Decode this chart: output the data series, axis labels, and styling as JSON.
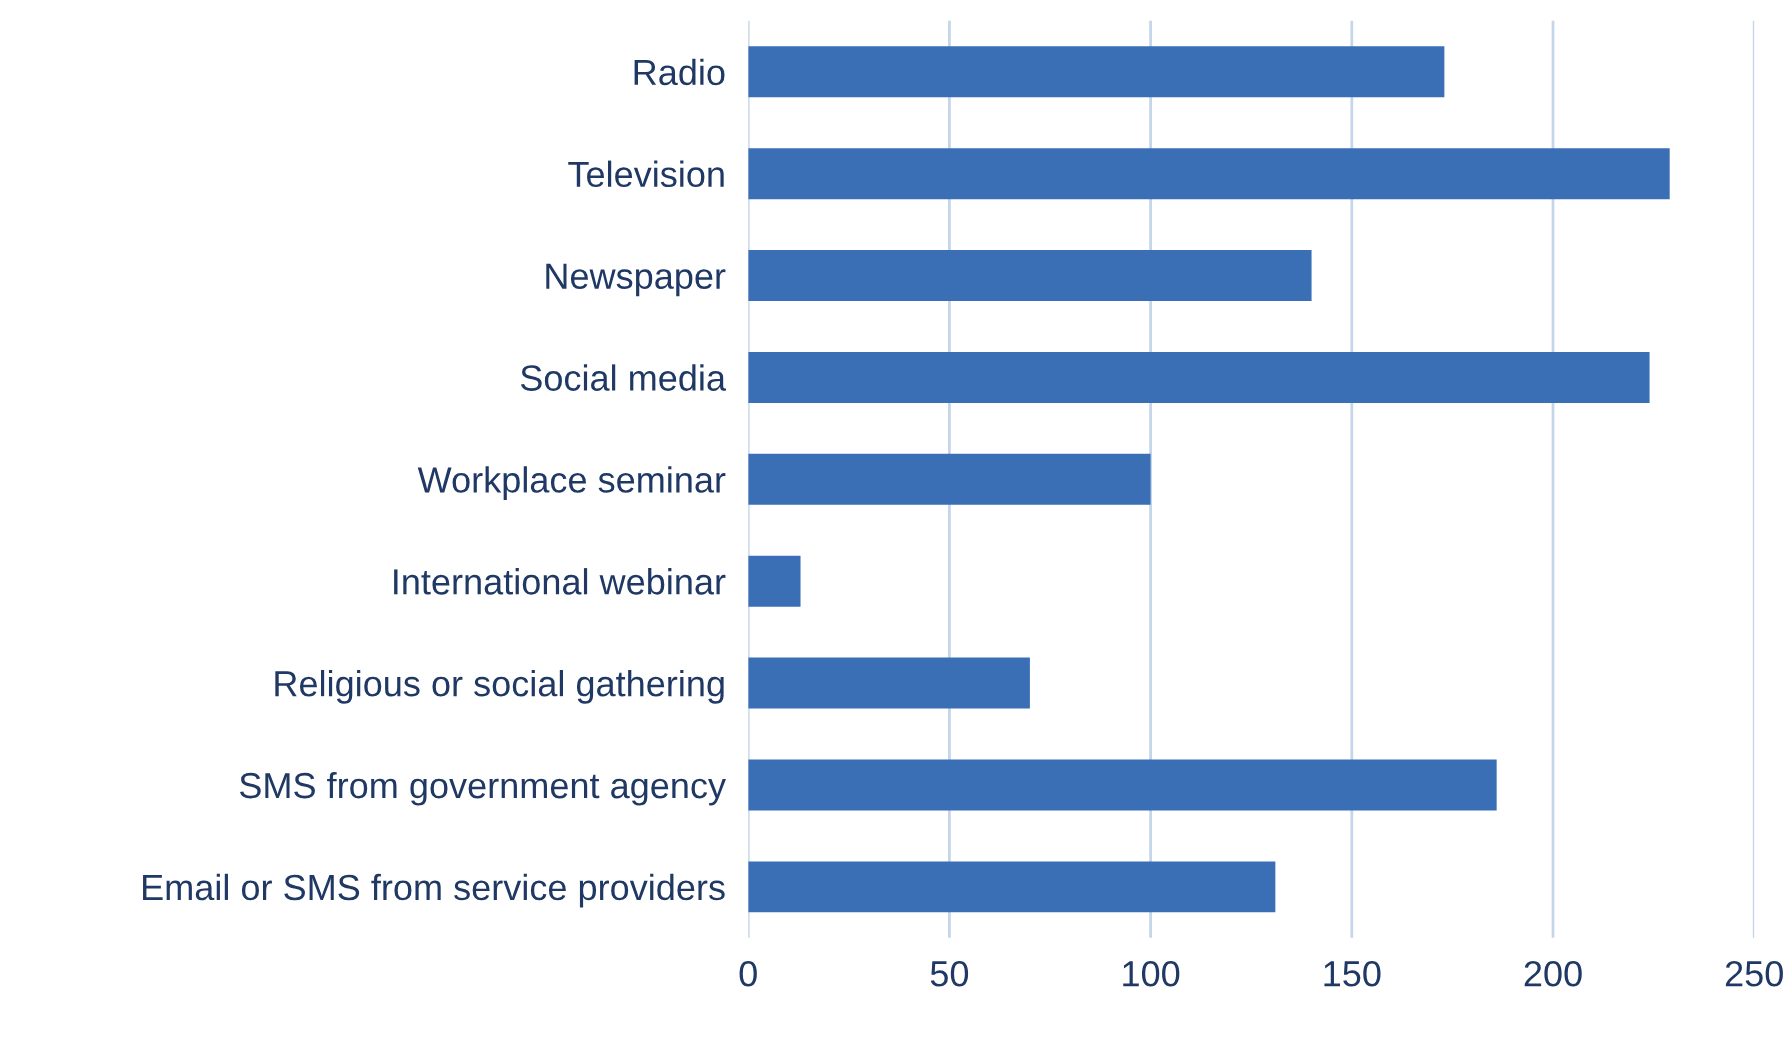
{
  "chart_data": {
    "type": "bar",
    "orientation": "horizontal",
    "categories": [
      "Radio",
      "Television",
      "Newspaper",
      "Social media",
      "Workplace seminar",
      "International webinar",
      "Religious or social gathering",
      "SMS from government agency",
      "Email or SMS from service providers"
    ],
    "values": [
      173,
      229,
      140,
      224,
      100,
      13,
      70,
      186,
      131
    ],
    "color": "#3a6fb6",
    "xlim": [
      0,
      250
    ],
    "xticks": [
      0,
      50,
      100,
      150,
      200,
      250
    ],
    "grid": "x"
  }
}
